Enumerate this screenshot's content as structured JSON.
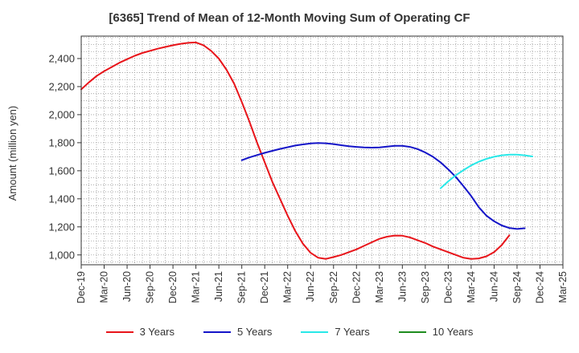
{
  "chart_data": {
    "type": "line",
    "title": "[6365]  Trend of Mean of 12-Month Moving Sum of Operating CF",
    "xlabel": "",
    "ylabel": "Amount (million yen)",
    "ylim": [
      930,
      2560
    ],
    "yticks": [
      1000,
      1200,
      1400,
      1600,
      1800,
      2000,
      2200,
      2400
    ],
    "ytick_labels": [
      "1,000",
      "1,200",
      "1,400",
      "1,600",
      "1,800",
      "2,000",
      "2,200",
      "2,400"
    ],
    "xtick_labels": [
      "Dec-19",
      "Mar-20",
      "Jun-20",
      "Sep-20",
      "Dec-20",
      "Mar-21",
      "Jun-21",
      "Sep-21",
      "Dec-21",
      "Mar-22",
      "Jun-22",
      "Sep-22",
      "Dec-22",
      "Mar-23",
      "Jun-23",
      "Sep-23",
      "Dec-23",
      "Mar-24",
      "Jun-24",
      "Sep-24",
      "Dec-24",
      "Mar-25"
    ],
    "grid": true,
    "series": [
      {
        "name": "3 Years",
        "color": "#e8141a",
        "start_index": 0,
        "values": [
          2180,
          2230,
          2275,
          2310,
          2340,
          2370,
          2395,
          2420,
          2440,
          2455,
          2470,
          2483,
          2495,
          2505,
          2512,
          2515,
          2495,
          2455,
          2400,
          2320,
          2220,
          2090,
          1950,
          1800,
          1660,
          1520,
          1400,
          1280,
          1170,
          1080,
          1015,
          980,
          972,
          985,
          1000,
          1020,
          1040,
          1065,
          1090,
          1115,
          1130,
          1138,
          1137,
          1125,
          1105,
          1085,
          1060,
          1040,
          1020,
          1000,
          980,
          972,
          975,
          990,
          1020,
          1070,
          1140
        ]
      },
      {
        "name": "5 Years",
        "color": "#1414c8",
        "start_index": 21,
        "values": [
          1675,
          1695,
          1712,
          1728,
          1742,
          1756,
          1768,
          1780,
          1788,
          1795,
          1798,
          1796,
          1790,
          1782,
          1775,
          1770,
          1767,
          1765,
          1767,
          1772,
          1778,
          1778,
          1770,
          1755,
          1730,
          1700,
          1660,
          1610,
          1555,
          1490,
          1420,
          1340,
          1280,
          1240,
          1210,
          1192,
          1185,
          1190
        ]
      },
      {
        "name": "7 Years",
        "color": "#28e8e8",
        "start_index": 47,
        "values": [
          1475,
          1525,
          1568,
          1605,
          1638,
          1665,
          1685,
          1700,
          1710,
          1715,
          1715,
          1710,
          1702
        ]
      },
      {
        "name": "10 Years",
        "color": "#1e8c1e",
        "start_index": 0,
        "values": []
      }
    ]
  }
}
